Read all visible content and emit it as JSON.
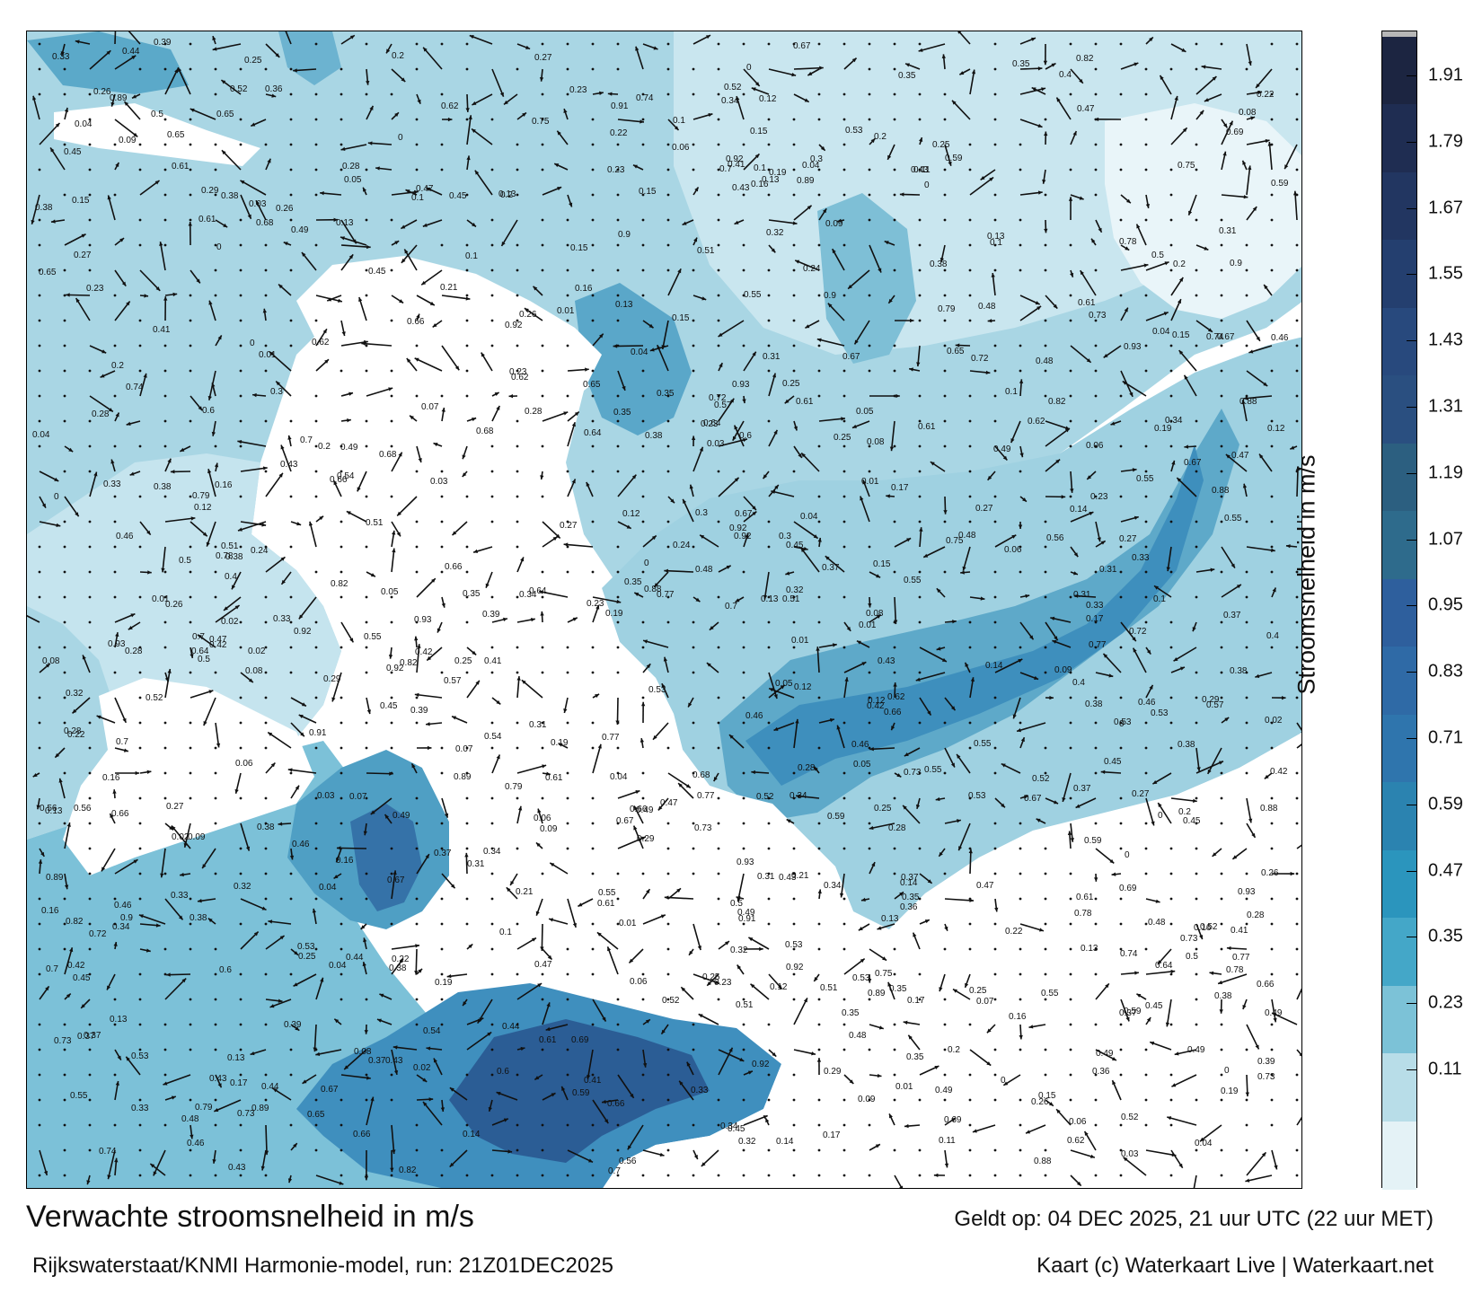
{
  "map": {
    "type": "current-speed forecast map",
    "region": "Waddenzee / Dutch coast",
    "land_color": "#ffffff",
    "water_colors": [
      "#e6f3f7",
      "#a8d6e3",
      "#5eb3cc",
      "#2f8fb3",
      "#2a6aa3",
      "#24497f"
    ],
    "arrow_color": "#000000",
    "grid_marker": "dot",
    "speed_labels": [
      "0.06",
      "0.09",
      "0.14",
      "0.12",
      "0.13",
      "0.07",
      "0.05",
      "0.04",
      "0.08",
      "0.11",
      "0.1",
      "0.12",
      "0.15",
      "0.16",
      "0.17",
      "0.19",
      "0.2",
      "0.21",
      "0.22",
      "0.23",
      "0.24",
      "0.25",
      "0.26",
      "0.27",
      "0.28",
      "0.29",
      "0.3",
      "0.31",
      "0.32",
      "0.33",
      "0.34",
      "0.35",
      "0.36",
      "0.37",
      "0.38",
      "0.39",
      "0.4",
      "0.41",
      "0.42",
      "0.43",
      "0.44",
      "0.45",
      "0.46",
      "0.47",
      "0.48",
      "0.49",
      "0.5",
      "0.51",
      "0.52",
      "0.53",
      "0.54",
      "0.55",
      "0.56",
      "0.57",
      "0.59",
      "0.6",
      "0.61",
      "0.62",
      "0.64",
      "0.65",
      "0.66",
      "0.67",
      "0.68",
      "0.69",
      "0.7",
      "0.72",
      "0.73",
      "0.74",
      "0.75",
      "0.77",
      "0.78",
      "0.79",
      "0.82",
      "0.88",
      "0.89",
      "0.9",
      "0.91",
      "0.92",
      "0.93",
      "0.02",
      "0.03",
      "0.01",
      "0"
    ]
  },
  "colorbar": {
    "title": "Stroomsnelheid in m/s",
    "ticks": [
      "1.91",
      "1.79",
      "1.67",
      "1.55",
      "1.43",
      "1.31",
      "1.19",
      "1.07",
      "0.95",
      "0.83",
      "0.71",
      "0.59",
      "0.47",
      "0.35",
      "0.23",
      "0.11"
    ],
    "colors": [
      "#1c2541",
      "#1f2d52",
      "#223661",
      "#243f6f",
      "#28497d",
      "#2a4f80",
      "#2c5f80",
      "#2e6b8c",
      "#2e5f9d",
      "#2f6aa6",
      "#2f75ad",
      "#2b83b0",
      "#2b95bd",
      "#44a7c8",
      "#7cc2d7",
      "#b8dde8",
      "#e4f2f6"
    ]
  },
  "footer": {
    "title": "Verwachte stroomsnelheid in m/s",
    "source": "Rijkswaterstaat/KNMI Harmonie-model, run: 21Z01DEC2025",
    "valid": "Geldt op: 04 DEC 2025, 21 uur UTC (22 uur MET)",
    "credit": "Kaart (c) Waterkaart Live | Waterkaart.net"
  }
}
